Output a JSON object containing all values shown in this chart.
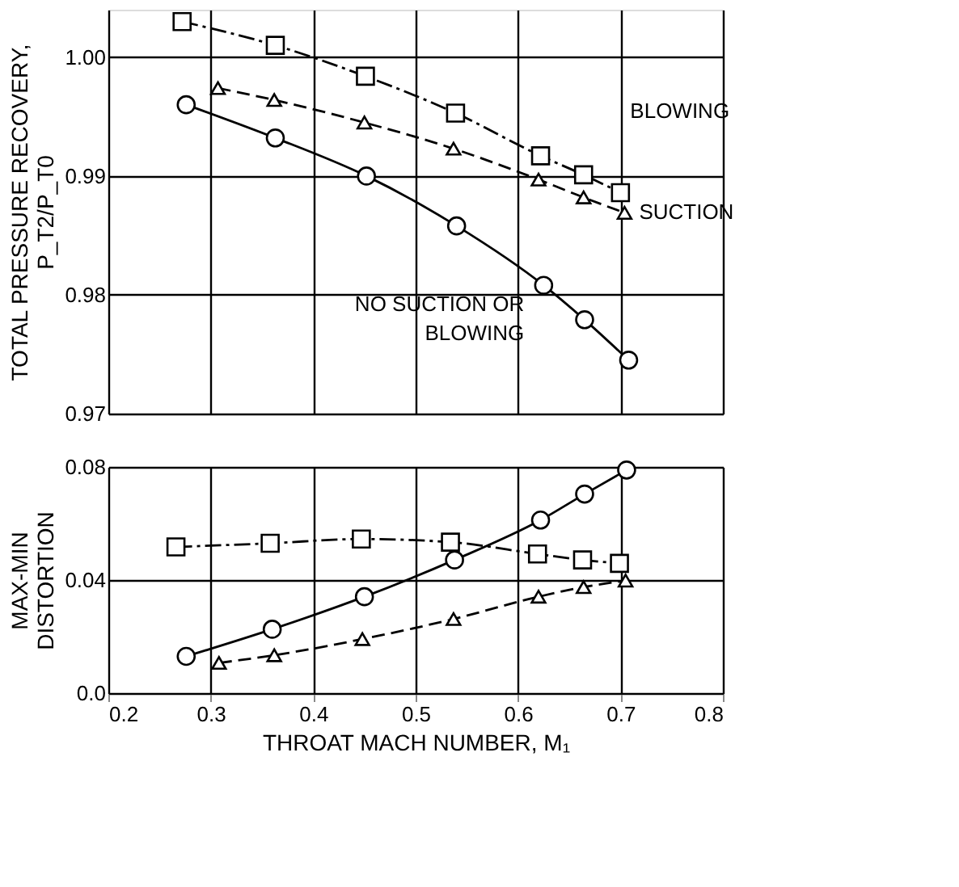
{
  "chart_data": [
    {
      "type": "line",
      "ylabel": "TOTAL PRESSURE RECOVERY,\nP_T2/P_T0",
      "xlim": [
        0.2,
        0.8
      ],
      "xticks": [
        0.2,
        0.3,
        0.4,
        0.5,
        0.6,
        0.7,
        0.8
      ],
      "ylim": [
        0.97,
        1.004
      ],
      "yticks": [
        0.97,
        0.98,
        0.99,
        {
          "value": 1.0,
          "label": "1.00"
        }
      ],
      "tick_labels": "y",
      "grid": true,
      "series": [
        {
          "name": "BLOWING",
          "color": "#000000",
          "marker": "square",
          "line_style": "dashdot",
          "x": [
            0.272,
            0.363,
            0.451,
            0.539,
            0.622,
            0.664,
            0.7
          ],
          "values": [
            1.003,
            1.001,
            0.9984,
            0.9953,
            0.9917,
            0.9901,
            0.9886
          ]
        },
        {
          "name": "SUCTION",
          "color": "#000000",
          "marker": "triangle",
          "line_style": "dashed",
          "x": [
            0.307,
            0.362,
            0.45,
            0.537,
            0.62,
            0.664,
            0.704
          ],
          "values": [
            0.9974,
            0.9964,
            0.9945,
            0.9923,
            0.9897,
            0.9882,
            0.9869
          ]
        },
        {
          "name": "NO SUCTION OR\nBLOWING",
          "color": "#000000",
          "marker": "circle",
          "line_style": "solid",
          "x": [
            0.276,
            0.363,
            0.452,
            0.54,
            0.625,
            0.665,
            0.708
          ],
          "values": [
            0.996,
            0.9932,
            0.99,
            0.9858,
            0.9808,
            0.9779,
            0.9745
          ]
        }
      ]
    },
    {
      "type": "line",
      "xlabel": "THROAT MACH NUMBER, M₁",
      "ylabel": "MAX-MIN\nDISTORTION",
      "xlim": [
        0.2,
        0.8
      ],
      "xticks": [
        0.2,
        0.3,
        0.4,
        0.5,
        0.6,
        0.7,
        0.8
      ],
      "ylim": [
        0.0,
        0.08
      ],
      "yticks": [
        {
          "value": 0.0,
          "label": "0.0"
        },
        0.04,
        0.08
      ],
      "grid": true,
      "series": [
        {
          "color": "#000000",
          "marker": "square",
          "line_style": "dashdot",
          "x": [
            0.266,
            0.358,
            0.447,
            0.534,
            0.619,
            0.663,
            0.699
          ],
          "values": [
            0.0517,
            0.053,
            0.0545,
            0.0534,
            0.0492,
            0.0471,
            0.0459
          ]
        },
        {
          "color": "#000000",
          "marker": "triangle",
          "line_style": "dashed",
          "x": [
            0.308,
            0.362,
            0.448,
            0.537,
            0.62,
            0.664,
            0.705
          ],
          "values": [
            0.0107,
            0.0134,
            0.0191,
            0.0262,
            0.0341,
            0.0375,
            0.0398
          ]
        },
        {
          "color": "#000000",
          "marker": "circle",
          "line_style": "solid",
          "x": [
            0.276,
            0.36,
            0.45,
            0.538,
            0.622,
            0.665,
            0.706
          ],
          "values": [
            0.013,
            0.0226,
            0.0341,
            0.0471,
            0.0612,
            0.0704,
            0.0789
          ]
        }
      ]
    }
  ]
}
